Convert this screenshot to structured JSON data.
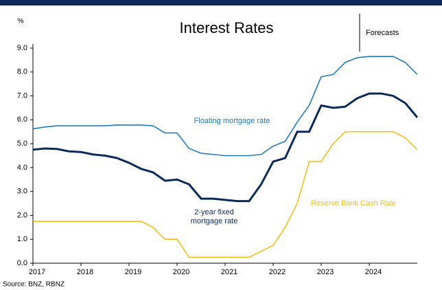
{
  "chart_data": {
    "type": "line",
    "title": "Interest Rates",
    "y_unit": "%",
    "x": [
      2017,
      2017.25,
      2017.5,
      2017.75,
      2018,
      2018.25,
      2018.5,
      2018.75,
      2019,
      2019.25,
      2019.5,
      2019.75,
      2020,
      2020.25,
      2020.5,
      2020.75,
      2021,
      2021.25,
      2021.5,
      2021.75,
      2022,
      2022.25,
      2022.5,
      2022.75,
      2023,
      2023.25,
      2023.5,
      2023.75,
      2024,
      2024.25,
      2024.5,
      2024.75,
      2025
    ],
    "series": [
      {
        "name": "Floating mortgage rate",
        "color": "#1f7ac1",
        "width": 1.6,
        "values": [
          5.62,
          5.7,
          5.75,
          5.75,
          5.75,
          5.75,
          5.75,
          5.78,
          5.78,
          5.78,
          5.75,
          5.45,
          5.45,
          4.8,
          4.6,
          4.55,
          4.5,
          4.5,
          4.5,
          4.55,
          4.9,
          5.1,
          5.9,
          6.6,
          7.8,
          7.9,
          8.4,
          8.6,
          8.65,
          8.65,
          8.65,
          8.4,
          7.9
        ]
      },
      {
        "name": "2-year fixed mortgage rate",
        "color": "#0b2a5c",
        "width": 3,
        "values": [
          4.75,
          4.8,
          4.78,
          4.68,
          4.65,
          4.55,
          4.5,
          4.4,
          4.2,
          3.95,
          3.8,
          3.45,
          3.5,
          3.3,
          2.7,
          2.7,
          2.65,
          2.6,
          2.6,
          3.3,
          4.25,
          4.4,
          5.5,
          5.5,
          6.6,
          6.5,
          6.55,
          6.9,
          7.1,
          7.1,
          7.0,
          6.7,
          6.1
        ]
      },
      {
        "name": "Reserve Bank Cash Rate",
        "color": "#f5bf1a",
        "width": 1.6,
        "values": [
          1.75,
          1.75,
          1.75,
          1.75,
          1.75,
          1.75,
          1.75,
          1.75,
          1.75,
          1.75,
          1.5,
          1.0,
          1.0,
          0.25,
          0.25,
          0.25,
          0.25,
          0.25,
          0.25,
          0.5,
          0.75,
          1.5,
          2.5,
          4.25,
          4.25,
          5.0,
          5.5,
          5.5,
          5.5,
          5.5,
          5.5,
          5.25,
          4.75
        ]
      }
    ],
    "xlim": [
      2017,
      2025
    ],
    "xticks": [
      2017,
      2018,
      2019,
      2020,
      2021,
      2022,
      2023,
      2024
    ],
    "ylim": [
      0,
      9
    ],
    "yticks": [
      {
        "value": 0,
        "label": "0.0"
      },
      {
        "value": 1,
        "label": "1.0"
      },
      {
        "value": 2,
        "label": "2.0"
      },
      {
        "value": 3,
        "label": "3.0"
      },
      {
        "value": 4,
        "label": "4.0"
      },
      {
        "value": 5,
        "label": "5.0"
      },
      {
        "value": 6,
        "label": "6.0"
      },
      {
        "value": 7,
        "label": "7.0"
      },
      {
        "value": 8,
        "label": "8.0"
      },
      {
        "value": 9,
        "label": "9.0"
      }
    ],
    "grid": false,
    "annotation": "Forecasts",
    "source": "Source: BNZ, RBNZ"
  }
}
